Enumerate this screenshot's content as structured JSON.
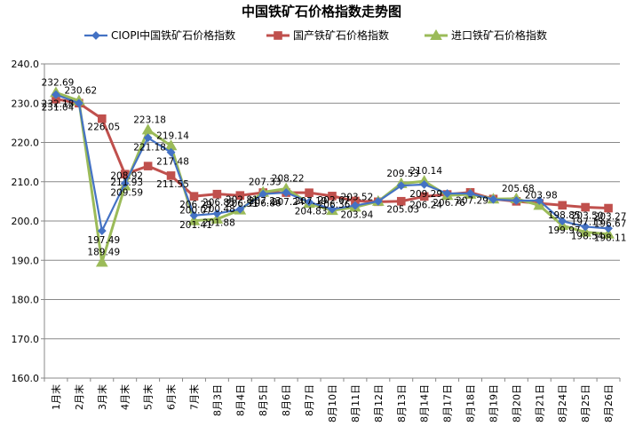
{
  "chart_data": {
    "type": "line",
    "title": "中国铁矿石价格指数走势图",
    "xlabel": "",
    "ylabel": "",
    "ylim": [
      160,
      240
    ],
    "y_ticks": [
      "160.0",
      "170.0",
      "180.0",
      "190.0",
      "200.0",
      "210.0",
      "220.0",
      "230.0",
      "240.0"
    ],
    "grid": "horizontal",
    "legend_position": "top",
    "categories": [
      "1月末",
      "2月末",
      "3月末",
      "4月末",
      "5月末",
      "6月末",
      "7月末",
      "8月3日",
      "8月4日",
      "8月5日",
      "8月6日",
      "8月7日",
      "8月10日",
      "8月11日",
      "8月12日",
      "8月13日",
      "8月14日",
      "8月17日",
      "8月18日",
      "8月19日",
      "8月20日",
      "8月21日",
      "8月24日",
      "8月25日",
      "8月26日"
    ],
    "series": [
      {
        "name": "CIOPI中国铁矿石价格指数",
        "color": "#4472C4",
        "marker": "diamond",
        "values": [
          232.18,
          230.0,
          197.49,
          209.59,
          221.18,
          217.48,
          201.41,
          201.88,
          203.0,
          206.86,
          207.24,
          204.83,
          203.0,
          203.94,
          205.0,
          209.0,
          209.29,
          207.0,
          207.0,
          205.5,
          205.2,
          205.2,
          199.97,
          198.54,
          198.11
        ],
        "labels": [
          "232.18",
          "",
          "197.49",
          "209.59",
          "221.18",
          "217.48",
          "201.41",
          "201.88",
          "",
          "206.86",
          "207.24",
          "204.83",
          "",
          "203.94",
          "",
          "",
          "209.29",
          "",
          "",
          "",
          "",
          "",
          "199.97",
          "198.54",
          "198.11"
        ]
      },
      {
        "name": "国产铁矿石价格指数",
        "color": "#C0504D",
        "marker": "square",
        "values": [
          231.04,
          230.0,
          226.05,
          211.93,
          213.98,
          211.55,
          206.29,
          206.85,
          206.51,
          207.23,
          207.22,
          207.19,
          206.36,
          205.1,
          204.9,
          205.03,
          206.24,
          206.76,
          207.29,
          205.6,
          205.0,
          204.5,
          204.0,
          203.5,
          203.27
        ],
        "labels": [
          "231.04",
          "",
          "226.05",
          "211.93",
          "",
          "211.55",
          "206.29",
          "206.85",
          "206.51",
          "207.23",
          "",
          "207.19",
          "206.36",
          "",
          "",
          "205.03",
          "206.24",
          "206.76",
          "207.29",
          "",
          "",
          "",
          "",
          "203.50",
          "203.27"
        ]
      },
      {
        "name": "进口铁矿石价格指数",
        "color": "#9BBB59",
        "marker": "triangle",
        "values": [
          232.69,
          230.62,
          189.49,
          208.92,
          223.18,
          219.14,
          200.07,
          200.48,
          202.81,
          207.33,
          208.22,
          204.5,
          202.67,
          203.52,
          205.0,
          209.53,
          210.14,
          206.5,
          206.8,
          205.6,
          205.68,
          203.98,
          198.85,
          197.15,
          196.67
        ],
        "labels": [
          "232.69",
          "230.62",
          "189.49",
          "208.92",
          "223.18",
          "219.14",
          "200.07",
          "200.48",
          "202.81",
          "207.33",
          "208.22",
          "",
          "202.67",
          "203.52",
          "",
          "209.53",
          "210.14",
          "",
          "",
          "",
          "205.68",
          "203.98",
          "198.85",
          "197.15",
          "196.67"
        ]
      }
    ]
  }
}
